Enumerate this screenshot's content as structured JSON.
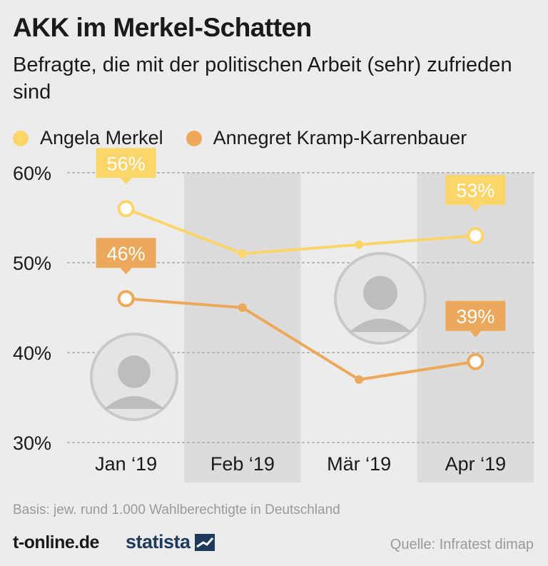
{
  "title": "AKK im Merkel-Schatten",
  "subtitle": "Befragte, die mit der politischen Arbeit (sehr) zufrieden sind",
  "footer": {
    "basis": "Basis: jew. rund 1.000 Wahlberechtigte in Deutschland",
    "brand": "t-online.de",
    "statista": "statista",
    "source": "Quelle: Infratest dimap"
  },
  "chart_data": {
    "type": "line",
    "categories": [
      "Jan ‘19",
      "Feb ‘19",
      "Mär ‘19",
      "Apr ‘19"
    ],
    "ylim": [
      30,
      60
    ],
    "yticks": [
      30,
      40,
      50,
      60
    ],
    "ytick_labels": [
      "30%",
      "40%",
      "50%",
      "60%"
    ],
    "grid": true,
    "legend_position": "top",
    "series": [
      {
        "name": "Angela Merkel",
        "color": "#fbd56a",
        "values": [
          56,
          51,
          52,
          53
        ],
        "labels": [
          "56%",
          "",
          "",
          "53%"
        ]
      },
      {
        "name": "Annegret Kramp-Karrenbauer",
        "color": "#eda95b",
        "values": [
          46,
          45,
          37,
          39
        ],
        "labels": [
          "46%",
          "",
          "",
          "39%"
        ]
      }
    ]
  }
}
